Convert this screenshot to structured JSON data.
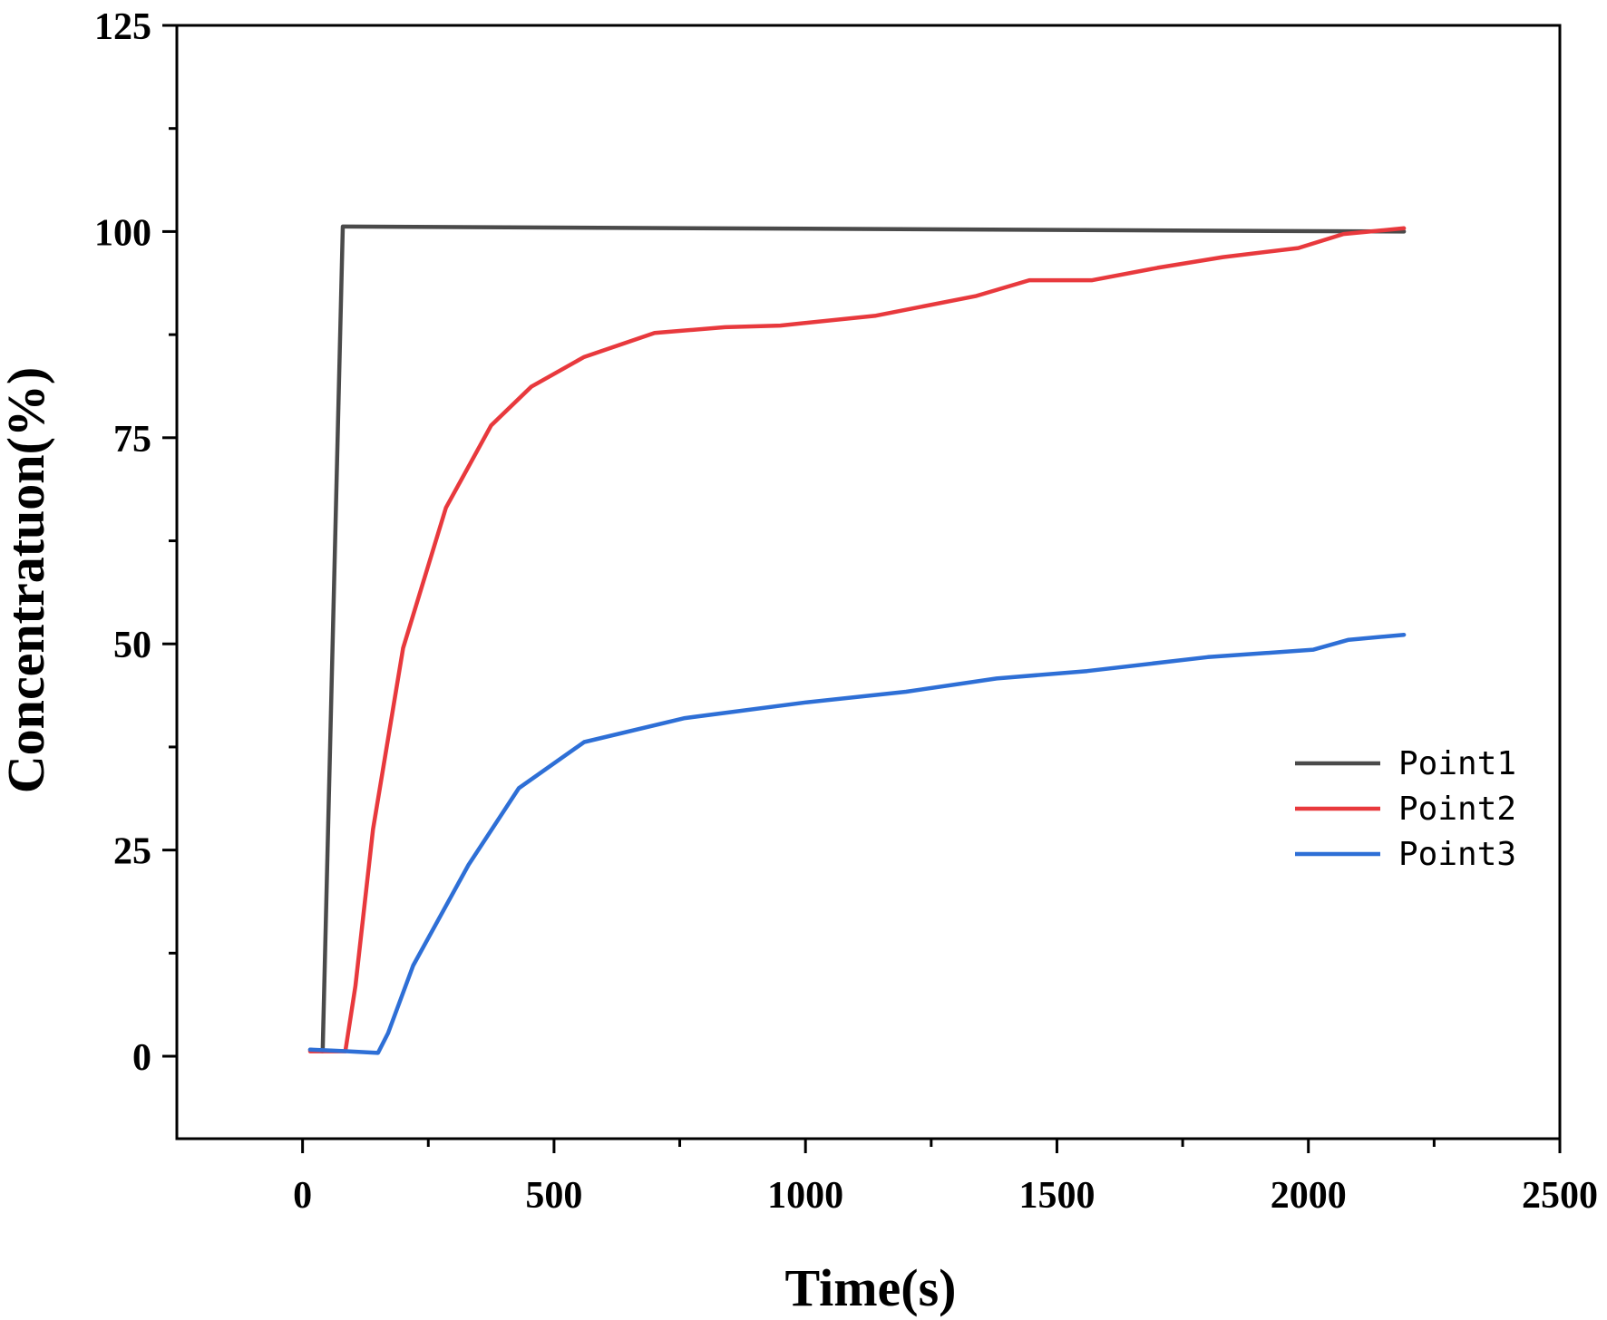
{
  "chart_data": {
    "type": "line",
    "title": "",
    "xlabel": "Time(s)",
    "ylabel": "Concentratuon(%)",
    "xlim": [
      -250,
      2500
    ],
    "ylim": [
      -10,
      125
    ],
    "xticks": [
      0,
      500,
      1000,
      1500,
      2000,
      2500
    ],
    "xtick_labels": [
      "0",
      "500",
      "1000",
      "1500",
      "2000",
      "2500"
    ],
    "yticks": [
      0,
      25,
      50,
      75,
      100,
      125
    ],
    "ytick_labels": [
      "0",
      "25",
      "50",
      "75",
      "100",
      "125"
    ],
    "grid": false,
    "legend_position": "center-right",
    "series": [
      {
        "name": "Point1",
        "color": "#4a4a4a",
        "x": [
          15,
          40,
          80,
          2190
        ],
        "y": [
          0.8,
          0.6,
          100.6,
          100.0
        ]
      },
      {
        "name": "Point2",
        "color": "#e8393d",
        "x": [
          15,
          40,
          85,
          105,
          140,
          200,
          285,
          375,
          455,
          560,
          700,
          840,
          950,
          1140,
          1340,
          1445,
          1570,
          1700,
          1830,
          1980,
          2070,
          2190
        ],
        "y": [
          0.6,
          0.6,
          0.6,
          8.5,
          27.5,
          49.5,
          66.5,
          76.5,
          81.2,
          84.8,
          87.7,
          88.4,
          88.6,
          89.8,
          92.2,
          94.1,
          94.1,
          95.6,
          96.9,
          98.0,
          99.7,
          100.4
        ]
      },
      {
        "name": "Point3",
        "color": "#2e6fd6",
        "x": [
          15,
          90,
          150,
          170,
          220,
          330,
          430,
          560,
          760,
          1000,
          1200,
          1380,
          1560,
          1800,
          2010,
          2080,
          2190
        ],
        "y": [
          0.8,
          0.6,
          0.4,
          2.8,
          11.0,
          23.2,
          32.5,
          38.1,
          41.0,
          42.9,
          44.2,
          45.8,
          46.7,
          48.4,
          49.3,
          50.5,
          51.1
        ]
      }
    ]
  }
}
